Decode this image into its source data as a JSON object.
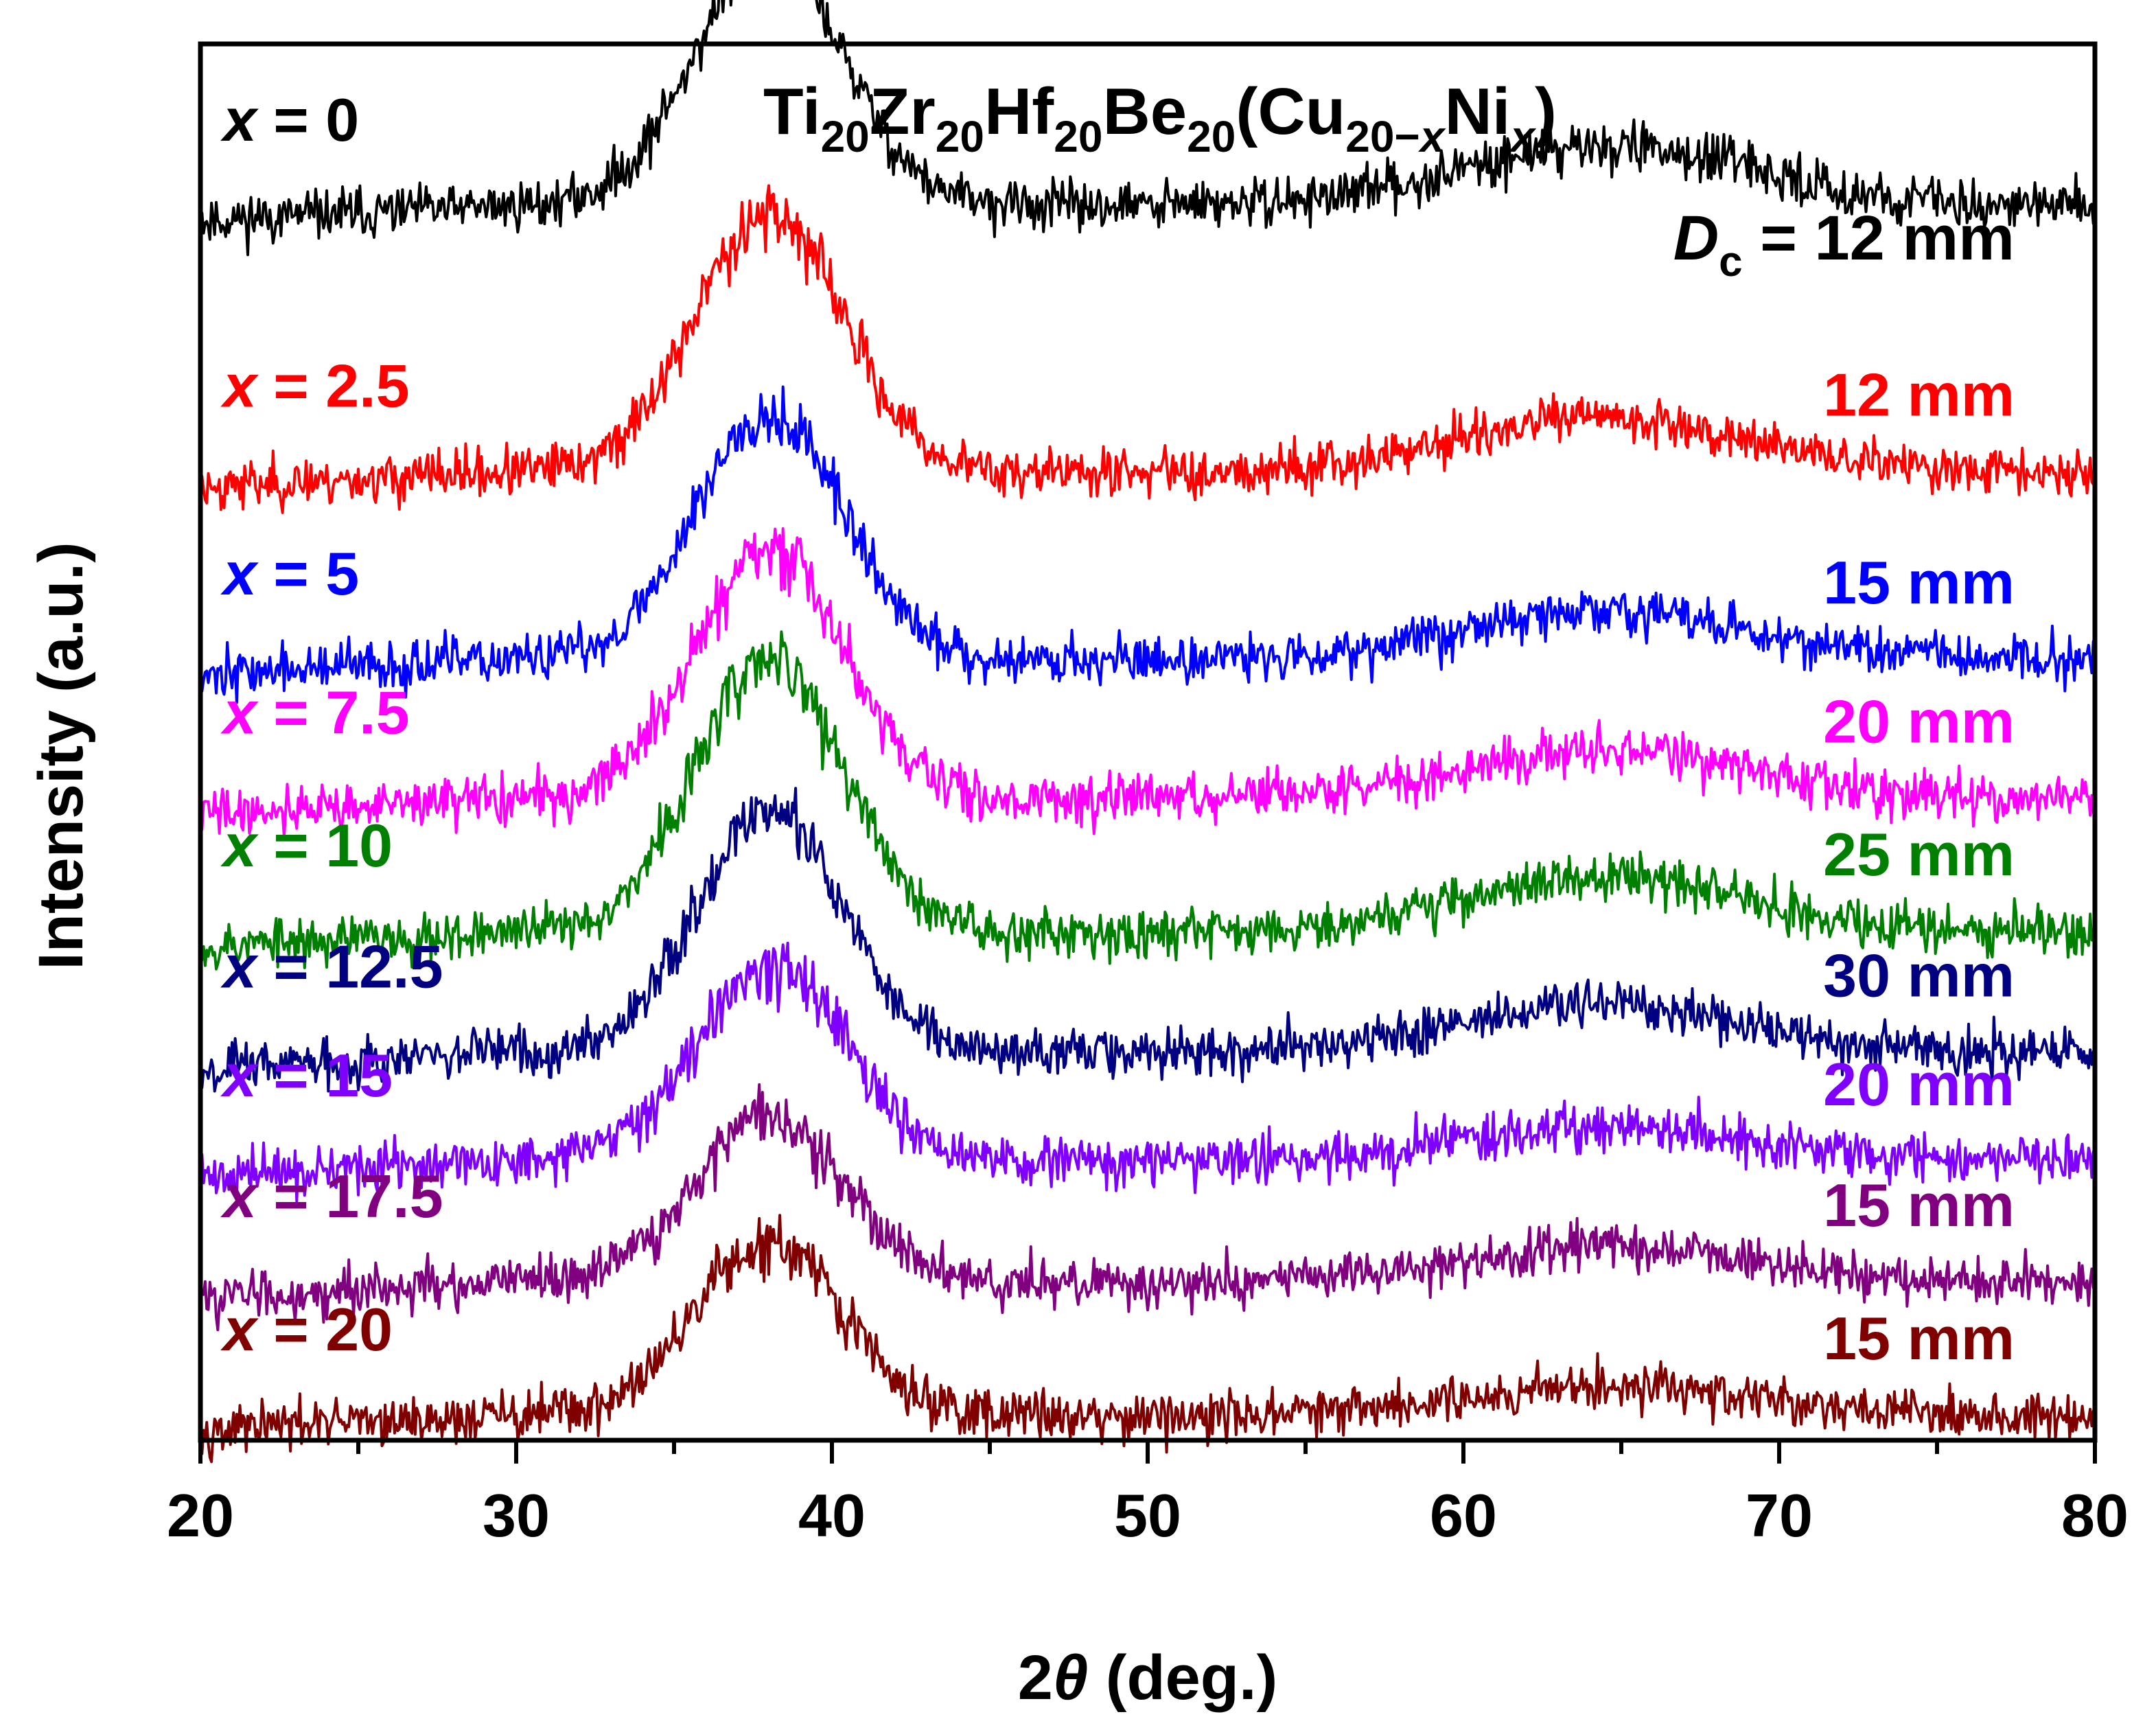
{
  "chart_data": {
    "type": "line",
    "title_parts": [
      {
        "t": "Ti",
        "k": "n"
      },
      {
        "t": "20",
        "k": "s"
      },
      {
        "t": "Zr",
        "k": "n"
      },
      {
        "t": "20",
        "k": "s"
      },
      {
        "t": "Hf",
        "k": "n"
      },
      {
        "t": "20",
        "k": "s"
      },
      {
        "t": "Be",
        "k": "n"
      },
      {
        "t": "20",
        "k": "s"
      },
      {
        "t": "(Cu",
        "k": "n"
      },
      {
        "t": "20−",
        "k": "s"
      },
      {
        "t": "x",
        "k": "si"
      },
      {
        "t": "Ni",
        "k": "n"
      },
      {
        "t": "x",
        "k": "si"
      },
      {
        "t": ")",
        "k": "n"
      }
    ],
    "xlabel_parts": [
      {
        "t": "2",
        "k": "n"
      },
      {
        "t": "θ",
        "k": "i"
      },
      {
        "t": " (deg.)",
        "k": "n"
      }
    ],
    "ylabel": "Intensity (a.u.)",
    "xlim": [
      20,
      80
    ],
    "x_ticks": [
      "20",
      "30",
      "40",
      "50",
      "60",
      "70",
      "80"
    ],
    "y_ticks": [],
    "dc_header": {
      "symbol": "D",
      "subscript": "c",
      "rest": " = 12 mm"
    },
    "series": [
      {
        "name": "x = 0",
        "var": "x",
        "rest": " = 0",
        "dc": "12 mm",
        "color": "#000000",
        "baseline": 1.0,
        "amp": 0.21,
        "hump": 0.05,
        "seed": 11
      },
      {
        "name": "x = 2.5",
        "var": "x",
        "rest": " = 2.5",
        "dc": "12 mm",
        "color": "#ff0000",
        "baseline": 0.78,
        "amp": 0.215,
        "hump": 0.045,
        "seed": 23
      },
      {
        "name": "x = 5",
        "var": "x",
        "rest": " = 5",
        "dc": "15 mm",
        "color": "#0000ff",
        "baseline": 0.625,
        "amp": 0.205,
        "hump": 0.04,
        "seed": 37
      },
      {
        "name": "x = 7.5",
        "var": "x",
        "rest": " = 7.5",
        "dc": "20 mm",
        "color": "#ff00ff",
        "baseline": 0.51,
        "amp": 0.205,
        "hump": 0.04,
        "seed": 41
      },
      {
        "name": "x = 10",
        "var": "x",
        "rest": " = 10",
        "dc": "25 mm",
        "color": "#008000",
        "baseline": 0.4,
        "amp": 0.225,
        "hump": 0.045,
        "seed": 53
      },
      {
        "name": "x = 12.5",
        "var": "x",
        "rest": " = 12.5",
        "dc": "30 mm",
        "color": "#000080",
        "baseline": 0.3,
        "amp": 0.2,
        "hump": 0.04,
        "seed": 67
      },
      {
        "name": "x = 15",
        "var": "x",
        "rest": " = 15",
        "dc": "20 mm",
        "color": "#8000ff",
        "baseline": 0.21,
        "amp": 0.165,
        "hump": 0.03,
        "seed": 71
      },
      {
        "name": "x = 17.5",
        "var": "x",
        "rest": " = 17.5",
        "dc": "15 mm",
        "color": "#800080",
        "baseline": 0.11,
        "amp": 0.14,
        "hump": 0.03,
        "seed": 83
      },
      {
        "name": "x = 20",
        "var": "x",
        "rest": " = 20",
        "dc": "15 mm",
        "color": "#800000",
        "baseline": 0.0,
        "amp": 0.14,
        "hump": 0.025,
        "seed": 97
      }
    ],
    "peak_center": 38.0,
    "peak_width": 3.3,
    "second_peak_center": 64.5,
    "second_peak_width": 6.5,
    "noise": 0.01,
    "step": 0.05,
    "grid": false,
    "legend": "inline-left"
  }
}
